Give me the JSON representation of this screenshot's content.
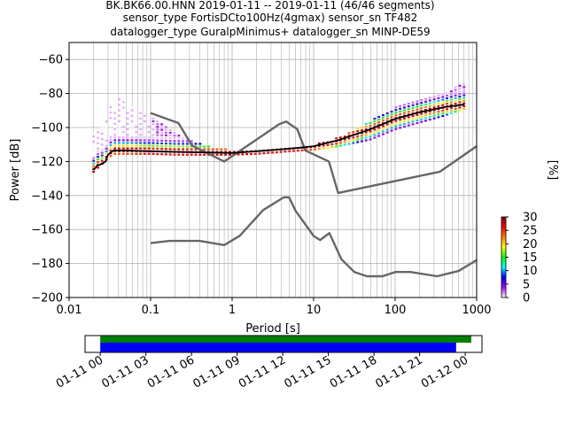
{
  "header": {
    "line1": "BK.BK66.00.HNN   2019-01-11 -- 2019-01-11  (46/46 segments)",
    "line2": "sensor_type FortisDCto100Hz(4gmax) sensor_sn TF482",
    "line3": "datalogger_type GuralpMinimus+ datalogger_sn MINP-DE59"
  },
  "chart_data": [
    {
      "type": "heatmap",
      "title": "BK.BK66.00.HNN   2019-01-11 -- 2019-01-11  (46/46 segments)",
      "xlabel": "Period [s]",
      "ylabel": "Power [dB]",
      "x_scale": "log",
      "xlim": [
        0.01,
        1000
      ],
      "ylim": [
        -200,
        -50
      ],
      "x_ticks": [
        "0.01",
        "0.1",
        "1",
        "10",
        "100",
        "1000"
      ],
      "y_ticks": [
        "−60",
        "−80",
        "−100",
        "−120",
        "−140",
        "−160",
        "−180",
        "−200"
      ],
      "grid": true,
      "colorbar": {
        "label": "[%]",
        "range": [
          0,
          30
        ],
        "ticks": [
          "0",
          "5",
          "10",
          "15",
          "20",
          "25",
          "30"
        ],
        "colors": [
          "#ffffff",
          "#a800ff",
          "#0000ff",
          "#00ffff",
          "#00ff00",
          "#ffff00",
          "#ff8000",
          "#ff0000",
          "#800000"
        ]
      },
      "noise_models": [
        {
          "period": [
            0.1,
            0.22,
            0.32,
            0.8,
            3.8,
            4.6,
            6.3,
            7.9,
            15.4,
            20,
            354.8,
            1000
          ],
          "power": [
            -91.5,
            -97.4,
            -110.5,
            -120,
            -98,
            -96.5,
            -101,
            -113.5,
            -120,
            -138.5,
            -126,
            -111
          ]
        },
        {
          "period": [
            0.1,
            0.17,
            0.4,
            0.8,
            1.24,
            2.4,
            4.3,
            5,
            6,
            10,
            12,
            15.6,
            21.9,
            31.6,
            45,
            70,
            101,
            154,
            328,
            600,
            1000
          ],
          "power": [
            -168,
            -166.7,
            -166.7,
            -169.2,
            -163.7,
            -148.6,
            -141.1,
            -141.1,
            -149,
            -163.8,
            -166.2,
            -162.1,
            -177.5,
            -185,
            -187.5,
            -187.5,
            -185,
            -185,
            -187.5,
            -184.4,
            -178
          ]
        }
      ],
      "mean_curve": {
        "period": [
          0.02,
          0.022,
          0.025,
          0.028,
          0.03,
          0.035,
          0.05,
          0.1,
          0.3,
          1,
          2,
          5,
          10,
          20,
          50,
          100,
          200,
          400,
          700
        ],
        "power": [
          -125,
          -122.5,
          -121.5,
          -120,
          -116,
          -113.5,
          -113.5,
          -114,
          -114.5,
          -115,
          -114,
          -112.5,
          -111,
          -107.5,
          -101,
          -95,
          -91,
          -88,
          -86.5
        ]
      },
      "spread": {
        "period": [
          0.02,
          0.03,
          0.035,
          0.05,
          0.1,
          0.2,
          0.5,
          1,
          2,
          5,
          10,
          20,
          50,
          100,
          200,
          400,
          700
        ],
        "upper": [
          -103,
          -94,
          -81,
          -86,
          -93,
          -103,
          -111,
          -113,
          -113,
          -111,
          -110,
          -106,
          -96,
          -88,
          -83,
          -79,
          -74
        ],
        "lower": [
          -126,
          -118,
          -115.5,
          -115.5,
          -115.5,
          -116,
          -116,
          -116,
          -115.5,
          -114,
          -113,
          -111,
          -107,
          -101,
          -97,
          -93,
          -89
        ]
      }
    },
    {
      "type": "timeline",
      "x_ticks": [
        "01-11 00",
        "01-11 03",
        "01-11 06",
        "01-11 09",
        "01-11 12",
        "01-11 15",
        "01-11 18",
        "01-11 21",
        "01-12 00"
      ],
      "xlim_hours": [
        -1,
        25.1
      ],
      "bars": [
        {
          "color": "#008000",
          "start_hour": 0,
          "end_hour": 24.4
        },
        {
          "color": "#0000ff",
          "start_hour": 0,
          "end_hour": 23.4
        }
      ]
    }
  ]
}
